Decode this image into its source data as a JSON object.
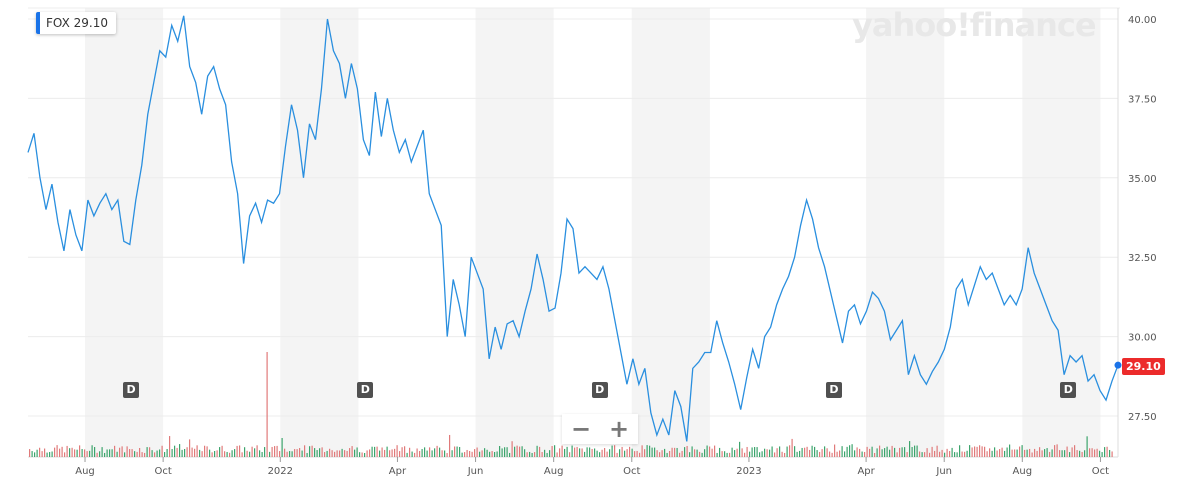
{
  "ticker": {
    "symbol": "FOX",
    "price": "29.10"
  },
  "logo": "yahoo!finance",
  "zoom_controls": {
    "minus": "−",
    "plus": "+"
  },
  "current_price_tag": "29.10",
  "dividend_marker": "D",
  "colors": {
    "line": "#2a8fdf",
    "band": "#f4f4f4",
    "grid": "#ececec",
    "vol_up": "#3ca46c",
    "vol_down": "#e07a7a",
    "price_tag": "#ec2b2b"
  },
  "chart_data": {
    "type": "line",
    "title": "FOX",
    "xlabel": "",
    "ylabel": "",
    "ylim": [
      26.5,
      40.3
    ],
    "y_ticks": [
      "27.50",
      "30.00",
      "32.50",
      "35.00",
      "37.50",
      "40.00"
    ],
    "y_tick_values": [
      27.5,
      30,
      32.5,
      35,
      37.5,
      40
    ],
    "x_ticks": [
      {
        "label": "Aug",
        "month": 1
      },
      {
        "label": "Oct",
        "month": 3
      },
      {
        "label": "2022",
        "month": 6
      },
      {
        "label": "Apr",
        "month": 9
      },
      {
        "label": "Jun",
        "month": 11
      },
      {
        "label": "Aug",
        "month": 13
      },
      {
        "label": "Oct",
        "month": 15
      },
      {
        "label": "2023",
        "month": 18
      },
      {
        "label": "Apr",
        "month": 21
      },
      {
        "label": "Jun",
        "month": 23
      },
      {
        "label": "Aug",
        "month": 25
      },
      {
        "label": "Oct",
        "month": 27
      }
    ],
    "x_range_months": [
      -0.46,
      27.45
    ],
    "series_note": "prices evenly spaced across x_range_months (months since Jul 2021)",
    "series": [
      {
        "name": "FOX",
        "values": [
          35.8,
          36.4,
          35.0,
          34.0,
          34.8,
          33.6,
          32.7,
          34.0,
          33.2,
          32.7,
          34.3,
          33.8,
          34.2,
          34.5,
          34.0,
          34.3,
          33.0,
          32.9,
          34.3,
          35.4,
          37.0,
          38.0,
          39.0,
          38.8,
          39.8,
          39.3,
          40.1,
          38.5,
          38.0,
          37.0,
          38.2,
          38.5,
          37.8,
          37.3,
          35.5,
          34.5,
          32.3,
          33.8,
          34.2,
          33.6,
          34.3,
          34.2,
          34.5,
          36.0,
          37.3,
          36.5,
          35.0,
          36.7,
          36.2,
          37.8,
          40.0,
          39.0,
          38.6,
          37.5,
          38.6,
          37.8,
          36.2,
          35.7,
          37.7,
          36.3,
          37.5,
          36.5,
          35.8,
          36.2,
          35.5,
          36.0,
          36.5,
          34.5,
          34.0,
          33.5,
          30.0,
          31.8,
          31.0,
          30.0,
          32.5,
          32.0,
          31.5,
          29.3,
          30.3,
          29.6,
          30.4,
          30.5,
          30.0,
          30.8,
          31.5,
          32.6,
          31.8,
          30.8,
          30.9,
          32.0,
          33.7,
          33.4,
          32.0,
          32.2,
          32.0,
          31.8,
          32.2,
          31.5,
          30.5,
          29.5,
          28.5,
          29.3,
          28.5,
          29.0,
          27.6,
          26.9,
          27.4,
          26.9,
          28.3,
          27.8,
          26.7,
          29.0,
          29.2,
          29.5,
          29.5,
          30.5,
          29.8,
          29.2,
          28.5,
          27.7,
          28.7,
          29.6,
          29.0,
          30.0,
          30.3,
          31.0,
          31.5,
          31.9,
          32.5,
          33.5,
          34.3,
          33.7,
          32.8,
          32.2,
          31.4,
          30.6,
          29.8,
          30.8,
          31.0,
          30.4,
          30.8,
          31.4,
          31.2,
          30.8,
          29.9,
          30.2,
          30.5,
          28.8,
          29.4,
          28.8,
          28.5,
          28.9,
          29.2,
          29.6,
          30.3,
          31.5,
          31.8,
          31.0,
          31.6,
          32.2,
          31.8,
          32.0,
          31.5,
          31.0,
          31.3,
          31.0,
          31.5,
          32.8,
          32.0,
          31.5,
          31.0,
          30.5,
          30.2,
          28.8,
          29.4,
          29.2,
          29.4,
          28.6,
          28.8,
          28.3,
          28.0,
          28.6,
          29.1
        ]
      }
    ],
    "dividend_months": [
      1.0,
      7.0,
      13.0,
      19.0,
      25.0
    ],
    "grid": true,
    "legend": "top-left"
  }
}
